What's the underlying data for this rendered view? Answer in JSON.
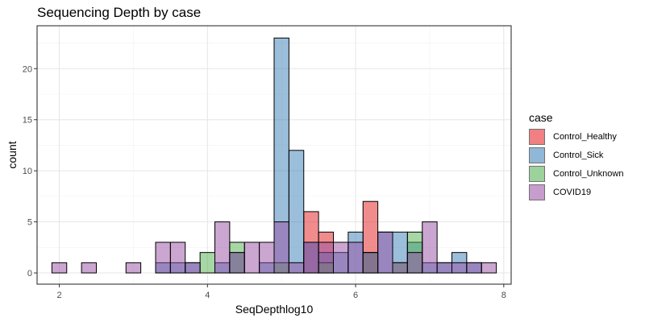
{
  "chart_data": {
    "type": "histogram",
    "title": "Sequencing Depth by case",
    "xlabel": "SeqDepthlog10",
    "ylabel": "count",
    "xlim": [
      1.7,
      8.1
    ],
    "ylim": [
      -1.1,
      24.2
    ],
    "x_ticks": [
      2,
      4,
      6,
      8
    ],
    "y_ticks": [
      0,
      5,
      10,
      15,
      20
    ],
    "bin_width": 0.2,
    "bin_starts": [
      1.9,
      2.1,
      2.3,
      2.5,
      2.7,
      2.9,
      3.1,
      3.3,
      3.5,
      3.7,
      3.9,
      4.1,
      4.3,
      4.5,
      4.7,
      4.9,
      5.1,
      5.3,
      5.5,
      5.7,
      5.9,
      6.1,
      6.3,
      6.5,
      6.7,
      6.9,
      7.1,
      7.3,
      7.5,
      7.7
    ],
    "overlay": true,
    "grid": true,
    "legend_position": "right",
    "legend_title": "case",
    "series": [
      {
        "name": "Control_Healthy",
        "color": "#E41A1C",
        "values": [
          0,
          0,
          0,
          0,
          0,
          0,
          0,
          0,
          0,
          0,
          0,
          0,
          0,
          0,
          0,
          0,
          0,
          6,
          4,
          0,
          0,
          7,
          0,
          0,
          0,
          0,
          0,
          0,
          0,
          0
        ]
      },
      {
        "name": "Control_Sick",
        "color": "#377EB8",
        "values": [
          0,
          0,
          0,
          0,
          0,
          0,
          0,
          1,
          1,
          1,
          0,
          1,
          2,
          0,
          1,
          23,
          12,
          3,
          2,
          2,
          4,
          2,
          4,
          4,
          3,
          1,
          1,
          2,
          1,
          0
        ]
      },
      {
        "name": "Control_Unknown",
        "color": "#4DAF4A",
        "values": [
          0,
          0,
          0,
          0,
          0,
          0,
          0,
          0,
          0,
          0,
          2,
          0,
          3,
          0,
          0,
          1,
          0,
          0,
          1,
          0,
          0,
          2,
          0,
          1,
          4,
          0,
          0,
          0,
          0,
          0
        ]
      },
      {
        "name": "COVID19",
        "color": "#984EA3",
        "values": [
          1,
          0,
          1,
          0,
          0,
          1,
          0,
          3,
          3,
          1,
          0,
          5,
          2,
          3,
          3,
          5,
          1,
          3,
          3,
          3,
          3,
          2,
          4,
          1,
          2,
          5,
          1,
          1,
          1,
          1
        ]
      }
    ]
  }
}
